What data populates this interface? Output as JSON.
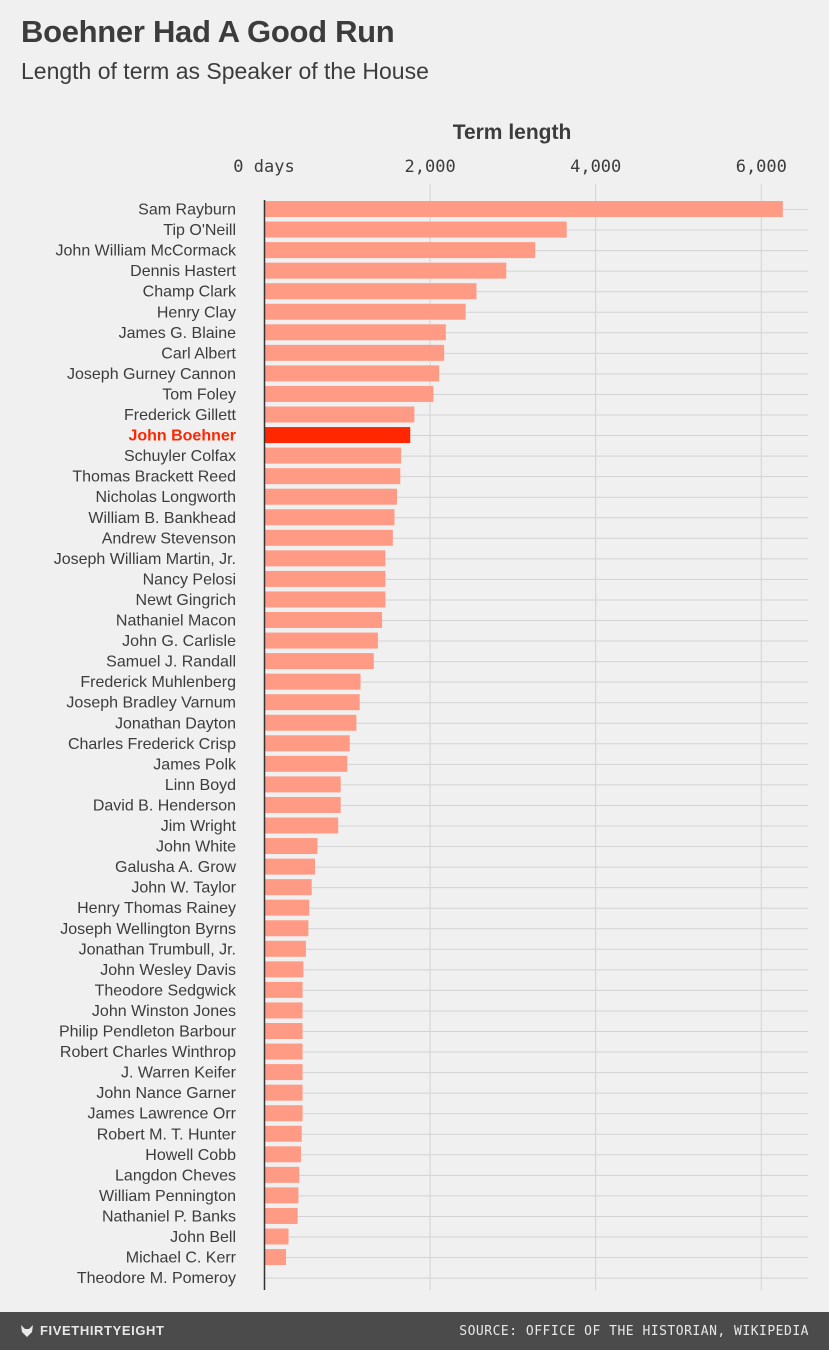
{
  "chart_data": {
    "type": "bar",
    "orientation": "horizontal",
    "title": "Boehner Had A Good Run",
    "subtitle": "Length of term as Speaker of the House",
    "xlabel": "Term length",
    "x_tick_values": [
      0,
      2000,
      4000,
      6000
    ],
    "x_tick_labels": [
      "0 days",
      "2,000",
      "4,000",
      "6,000"
    ],
    "xlim": [
      0,
      6600
    ],
    "highlight": "John Boehner",
    "colors": {
      "bar": "#ff9b85",
      "highlight": "#ff2700",
      "grid": "#d3d3d3",
      "axis": "#333333"
    },
    "categories": [
      "Sam Rayburn",
      "Tip O'Neill",
      "John William McCormack",
      "Dennis Hastert",
      "Champ Clark",
      "Henry Clay",
      "James G. Blaine",
      "Carl Albert",
      "Joseph Gurney Cannon",
      "Tom Foley",
      "Frederick Gillett",
      "John Boehner",
      "Schuyler Colfax",
      "Thomas Brackett Reed",
      "Nicholas Longworth",
      "William B. Bankhead",
      "Andrew Stevenson",
      "Joseph William Martin, Jr.",
      "Nancy Pelosi",
      "Newt Gingrich",
      "Nathaniel Macon",
      "John G. Carlisle",
      "Samuel J. Randall",
      "Frederick Muhlenberg",
      "Joseph Bradley Varnum",
      "Jonathan Dayton",
      "Charles Frederick Crisp",
      "James Polk",
      "Linn Boyd",
      "David B. Henderson",
      "Jim Wright",
      "John White",
      "Galusha A. Grow",
      "John W. Taylor",
      "Henry Thomas Rainey",
      "Joseph Wellington Byrns",
      "Jonathan Trumbull, Jr.",
      "John Wesley Davis",
      "Theodore Sedgwick",
      "John Winston Jones",
      "Philip Pendleton Barbour",
      "Robert Charles Winthrop",
      "J. Warren Keifer",
      "John Nance Garner",
      "James Lawrence Orr",
      "Robert M. T. Hunter",
      "Howell Cobb",
      "Langdon Cheves",
      "William Pennington",
      "Nathaniel P. Banks",
      "John Bell",
      "Michael C. Kerr",
      "Theodore M. Pomeroy"
    ],
    "values": [
      6260,
      3650,
      3270,
      2920,
      2560,
      2430,
      2190,
      2170,
      2110,
      2040,
      1810,
      1760,
      1650,
      1640,
      1600,
      1570,
      1550,
      1460,
      1460,
      1460,
      1420,
      1370,
      1320,
      1160,
      1150,
      1110,
      1030,
      1000,
      920,
      920,
      890,
      640,
      610,
      570,
      540,
      530,
      500,
      470,
      460,
      460,
      460,
      460,
      460,
      460,
      460,
      450,
      440,
      420,
      410,
      400,
      290,
      260,
      1
    ]
  },
  "footer": {
    "logo_text": "FIVETHIRTYEIGHT",
    "source": "SOURCE: OFFICE OF THE HISTORIAN, WIKIPEDIA"
  }
}
